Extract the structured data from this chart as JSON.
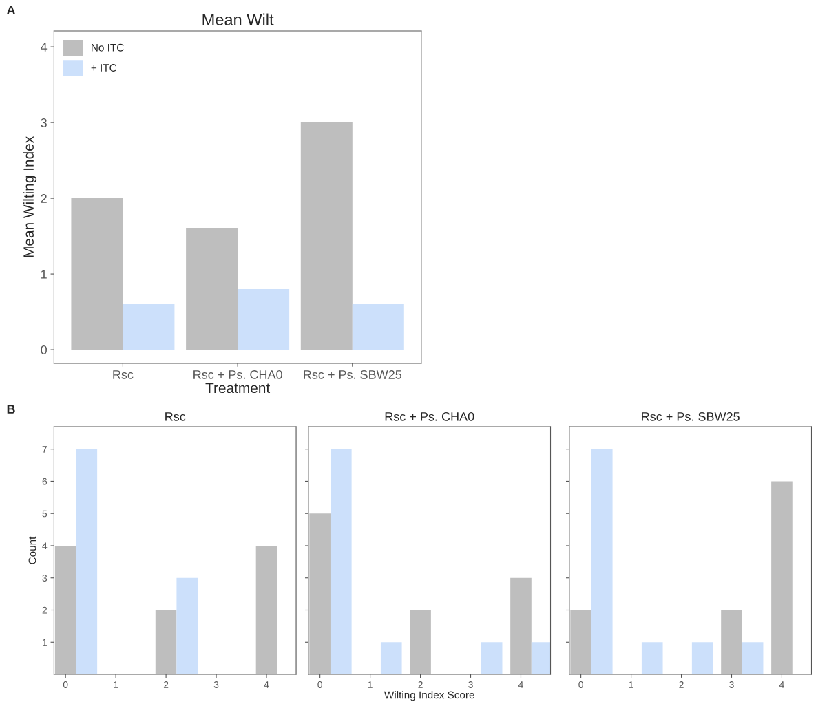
{
  "chart_data": [
    {
      "type": "bar",
      "title": "Mean Wilt",
      "xlabel": "Treatment",
      "ylabel": "Mean Wilting Index",
      "annotations": [
        "A"
      ],
      "categories": [
        "Rsc",
        "Rsc + Ps. CHA0",
        "Rsc + Ps. SBW25"
      ],
      "series": [
        {
          "name": "No ITC",
          "color": "#bebebe",
          "values": [
            2,
            1.6,
            3
          ]
        },
        {
          "name": "+ ITC",
          "color": "#cce0fb",
          "values": [
            0.6,
            0.8,
            0.6
          ]
        }
      ],
      "ylim": [
        -0.18,
        4.21
      ],
      "yticks": [
        0,
        1,
        2,
        3,
        4
      ],
      "grid": false,
      "legend": "top left"
    },
    {
      "type": "bar",
      "title": "Rsc",
      "ylabel": "Count",
      "annotations": [
        "B"
      ],
      "x": [
        0,
        1,
        2,
        3,
        4
      ],
      "series": [
        {
          "color": "#bebebe",
          "values": [
            4,
            0,
            2,
            0,
            4
          ]
        },
        {
          "color": "#cce0fb",
          "values": [
            7,
            0,
            3,
            0,
            0
          ]
        }
      ],
      "xlim": [
        -0.23,
        4.59
      ],
      "xticks": [
        0,
        1,
        2,
        3,
        4
      ],
      "ylim": [
        0,
        7.7
      ],
      "yticks": [
        1,
        2,
        3,
        4,
        5,
        6,
        7
      ],
      "grid": false
    },
    {
      "type": "bar",
      "title": "Rsc + Ps. CHA0",
      "xlabel": "Wilting Index Score",
      "x": [
        0,
        1,
        2,
        3,
        4
      ],
      "series": [
        {
          "color": "#bebebe",
          "values": [
            5,
            0,
            2,
            0,
            3
          ]
        },
        {
          "color": "#cce0fb",
          "values": [
            7,
            1,
            0,
            1,
            1
          ]
        }
      ],
      "xlim": [
        -0.23,
        4.59
      ],
      "xticks": [
        0,
        1,
        2,
        3,
        4
      ],
      "ylim": [
        0,
        7.7
      ],
      "yticks": [
        1,
        2,
        3,
        4,
        5,
        6,
        7
      ],
      "grid": false,
      "tick_labels": "x"
    },
    {
      "type": "bar",
      "title": "Rsc + Ps. SBW25",
      "x": [
        0,
        1,
        2,
        3,
        4
      ],
      "series": [
        {
          "color": "#bebebe",
          "values": [
            2,
            0,
            0,
            2,
            6
          ]
        },
        {
          "color": "#cce0fb",
          "values": [
            7,
            1,
            1,
            1,
            0
          ]
        }
      ],
      "xlim": [
        -0.23,
        4.59
      ],
      "xticks": [
        0,
        1,
        2,
        3,
        4
      ],
      "ylim": [
        0,
        7.7
      ],
      "yticks": [
        1,
        2,
        3,
        4,
        5,
        6,
        7
      ],
      "grid": false,
      "tick_labels": "x"
    }
  ]
}
